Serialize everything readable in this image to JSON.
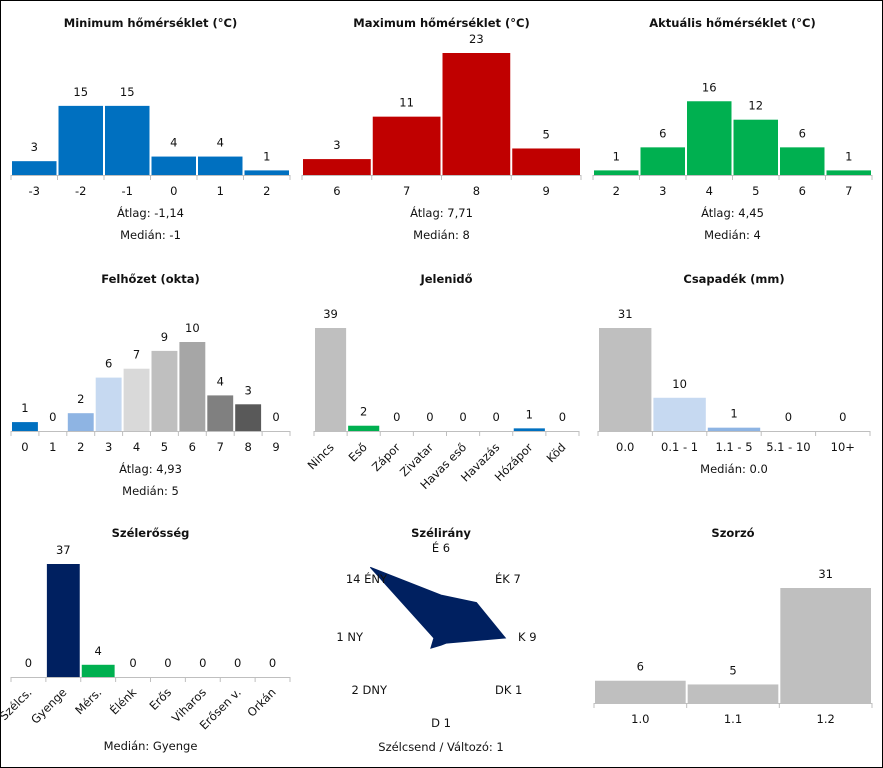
{
  "chart_data": [
    {
      "type": "bar",
      "title": "Minimum hőmérséklet (°C)",
      "categories": [
        "-3",
        "-2",
        "-1",
        "0",
        "1",
        "2"
      ],
      "values": [
        3,
        15,
        15,
        4,
        4,
        1
      ],
      "colors": [
        "#0070c0",
        "#0070c0",
        "#0070c0",
        "#0070c0",
        "#0070c0",
        "#0070c0"
      ],
      "ylim": [
        0,
        23
      ],
      "stats": [
        {
          "label": "Átlag:",
          "value": "-1,14"
        },
        {
          "label": "Medián:",
          "value": "-1"
        }
      ]
    },
    {
      "type": "bar",
      "title": "Maximum hőmérséklet (°C)",
      "categories": [
        "6",
        "7",
        "8",
        "9"
      ],
      "values": [
        3,
        11,
        23,
        5
      ],
      "colors": [
        "#c00000",
        "#c00000",
        "#c00000",
        "#c00000"
      ],
      "ylim": [
        0,
        23
      ],
      "stats": [
        {
          "label": "Átlag:",
          "value": "7,71"
        },
        {
          "label": "Medián:",
          "value": "8"
        }
      ]
    },
    {
      "type": "bar",
      "title": "Aktuális hőmérséklet (°C)",
      "categories": [
        "2",
        "3",
        "4",
        "5",
        "6",
        "7"
      ],
      "values": [
        1,
        6,
        16,
        12,
        6,
        1
      ],
      "colors": [
        "#00b050",
        "#00b050",
        "#00b050",
        "#00b050",
        "#00b050",
        "#00b050"
      ],
      "ylim": [
        0,
        23
      ],
      "stats": [
        {
          "label": "Átlag:",
          "value": "4,45"
        },
        {
          "label": "Medián:",
          "value": "4"
        }
      ]
    },
    {
      "type": "bar",
      "title": "Felhőzet (okta)",
      "categories": [
        "0",
        "1",
        "2",
        "3",
        "4",
        "5",
        "6",
        "7",
        "8",
        "9"
      ],
      "values": [
        1,
        0,
        2,
        6,
        7,
        9,
        10,
        4,
        3,
        0
      ],
      "colors": [
        "#0070c0",
        "#0070c0",
        "#8eb4e3",
        "#c6d9f1",
        "#d9d9d9",
        "#bfbfbf",
        "#a6a6a6",
        "#808080",
        "#595959",
        "#404040"
      ],
      "ylim": [
        0,
        10
      ],
      "stats": [
        {
          "label": "Átlag:",
          "value": "4,93"
        },
        {
          "label": "Medián:",
          "value": "5"
        }
      ]
    },
    {
      "type": "bar",
      "title": "Jelenidő",
      "categories": [
        "Nincs",
        "Eső",
        "Zápor",
        "Zivatar",
        "Havas eső",
        "Havazás",
        "Hózápor",
        "Köd"
      ],
      "values": [
        39,
        2,
        0,
        0,
        0,
        0,
        1,
        0
      ],
      "colors": [
        "#bfbfbf",
        "#00b050",
        "#00b050",
        "#00b050",
        "#00b050",
        "#0070c0",
        "#0070c0",
        "#bfbfbf"
      ],
      "ylim": [
        0,
        39
      ],
      "rotated_labels": true,
      "stats": []
    },
    {
      "type": "bar",
      "title": "Csapadék (mm)",
      "categories": [
        "0.0",
        "0.1 - 1",
        "1.1 - 5",
        "5.1 - 10",
        "10+"
      ],
      "values": [
        31,
        10,
        1,
        0,
        0
      ],
      "colors": [
        "#bfbfbf",
        "#c6d9f1",
        "#8eb4e3",
        "#8eb4e3",
        "#8eb4e3"
      ],
      "ylim": [
        0,
        31
      ],
      "stats": [
        {
          "label": "Medián:",
          "value": "0.0"
        }
      ]
    },
    {
      "type": "bar",
      "title": "Szélerősség",
      "categories": [
        "Szélcs.",
        "Gyenge",
        "Mérs.",
        "Élénk",
        "Erős",
        "Viharos",
        "Erősen v.",
        "Orkán"
      ],
      "values": [
        0,
        37,
        4,
        0,
        0,
        0,
        0,
        0
      ],
      "colors": [
        "#002060",
        "#002060",
        "#00b050",
        "#00b050",
        "#00b050",
        "#00b050",
        "#00b050",
        "#00b050"
      ],
      "ylim": [
        0,
        37
      ],
      "rotated_labels": true,
      "stats": [
        {
          "label": "Medián:",
          "value": "Gyenge"
        }
      ]
    },
    {
      "type": "radar",
      "title": "Szélirány",
      "directions": [
        "É",
        "ÉK",
        "K",
        "DK",
        "D",
        "DNY",
        "NY",
        "ÉNY"
      ],
      "values": [
        6,
        7,
        9,
        1,
        1,
        2,
        1,
        14
      ],
      "color": "#002060",
      "calm_label": "Szélcsend / Változó:",
      "calm_value": "1"
    },
    {
      "type": "bar",
      "title": "Szorzó",
      "categories": [
        "1.0",
        "1.1",
        "1.2"
      ],
      "values": [
        6,
        5,
        31
      ],
      "colors": [
        "#bfbfbf",
        "#bfbfbf",
        "#bfbfbf"
      ],
      "ylim": [
        0,
        31
      ],
      "stats": []
    }
  ]
}
